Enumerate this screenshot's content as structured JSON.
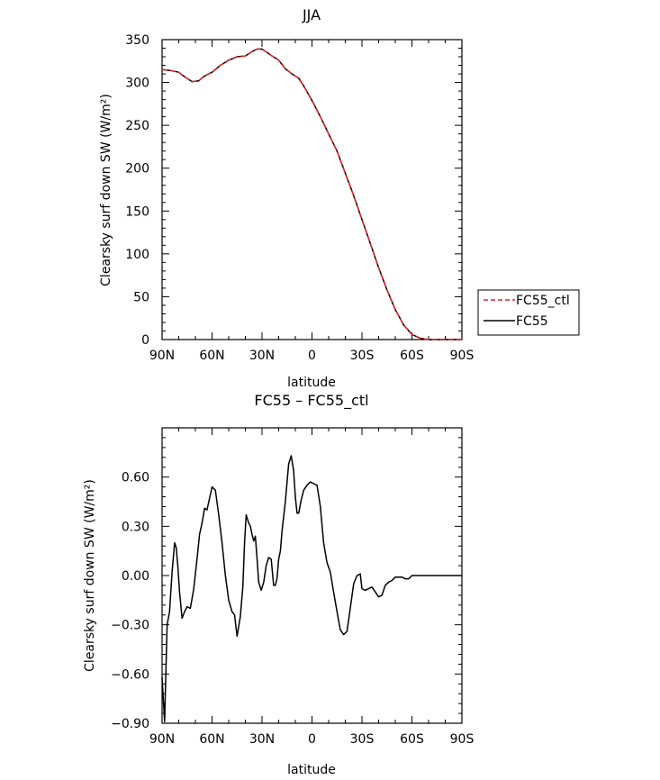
{
  "chart_data": [
    {
      "type": "line",
      "title": "JJA",
      "xlabel": "latitude",
      "ylabel": "Clearsky surf down SW (W/m²)",
      "x_ticks": [
        {
          "value": 90,
          "label": "90N"
        },
        {
          "value": 60,
          "label": "60N"
        },
        {
          "value": 30,
          "label": "30N"
        },
        {
          "value": 0,
          "label": "0"
        },
        {
          "value": -30,
          "label": "30S"
        },
        {
          "value": -60,
          "label": "60S"
        },
        {
          "value": -90,
          "label": "90S"
        }
      ],
      "xlim": [
        90,
        -90
      ],
      "ylim": [
        0,
        350
      ],
      "y_ticks": [
        {
          "value": 0,
          "label": "0"
        },
        {
          "value": 50,
          "label": "50"
        },
        {
          "value": 100,
          "label": "100"
        },
        {
          "value": 150,
          "label": "150"
        },
        {
          "value": 200,
          "label": "200"
        },
        {
          "value": 250,
          "label": "250"
        },
        {
          "value": 300,
          "label": "300"
        },
        {
          "value": 350,
          "label": "350"
        }
      ],
      "legend": {
        "placement": "right",
        "entries": [
          {
            "name": "FC55_ctl",
            "color": "#e8202a",
            "dash": "dashed"
          },
          {
            "name": "FC55",
            "color": "#000000",
            "dash": "solid"
          }
        ]
      },
      "series": [
        {
          "name": "FC55_ctl",
          "color": "#e8202a",
          "x": [
            90,
            85,
            80,
            76,
            72,
            68,
            65,
            60,
            55,
            50,
            45,
            40,
            36,
            33,
            30,
            27,
            24,
            20,
            16,
            12,
            8,
            5,
            0,
            -5,
            -10,
            -15,
            -20,
            -25,
            -30,
            -35,
            -40,
            -45,
            -50,
            -55,
            -60,
            -65,
            -70,
            -75,
            -80,
            -85,
            -90
          ],
          "y": [
            315,
            314,
            312,
            306,
            301,
            302,
            307,
            312,
            320,
            326,
            330,
            331,
            336,
            339,
            339,
            335,
            331,
            326,
            316,
            310,
            305,
            296,
            279,
            260,
            240,
            220,
            194,
            168,
            140,
            112,
            84,
            58,
            35,
            17,
            6,
            1.5,
            0,
            0,
            0,
            0,
            0
          ]
        },
        {
          "name": "FC55",
          "color": "#000000",
          "x": [
            90,
            85,
            80,
            76,
            72,
            68,
            65,
            60,
            55,
            50,
            45,
            40,
            36,
            33,
            30,
            27,
            24,
            20,
            16,
            12,
            8,
            5,
            0,
            -5,
            -10,
            -15,
            -20,
            -25,
            -30,
            -35,
            -40,
            -45,
            -50,
            -55,
            -60,
            -65,
            -70,
            -75,
            -80,
            -85,
            -90
          ],
          "y": [
            315,
            314,
            312,
            306,
            301,
            302,
            307,
            312,
            320,
            326,
            330,
            331,
            336,
            339,
            339,
            335,
            331,
            326,
            316,
            310,
            305,
            296,
            279,
            260,
            240,
            220,
            194,
            168,
            140,
            112,
            84,
            58,
            35,
            17,
            6,
            1.5,
            0,
            0,
            0,
            0,
            0
          ]
        }
      ]
    },
    {
      "type": "line",
      "title": "FC55 – FC55_ctl",
      "xlabel": "latitude",
      "ylabel": "Clearsky surf down SW (W/m²)",
      "x_ticks": [
        {
          "value": 90,
          "label": "90N"
        },
        {
          "value": 60,
          "label": "60N"
        },
        {
          "value": 30,
          "label": "30N"
        },
        {
          "value": 0,
          "label": "0"
        },
        {
          "value": -30,
          "label": "30S"
        },
        {
          "value": -60,
          "label": "60S"
        },
        {
          "value": -90,
          "label": "90S"
        }
      ],
      "xlim": [
        90,
        -90
      ],
      "ylim": [
        -0.9,
        0.9
      ],
      "y_ticks": [
        {
          "value": -0.9,
          "label": "−0.90"
        },
        {
          "value": -0.6,
          "label": "−0.60"
        },
        {
          "value": -0.3,
          "label": "−0.30"
        },
        {
          "value": 0,
          "label": "0.00"
        },
        {
          "value": 0.3,
          "label": "0.30"
        },
        {
          "value": 0.6,
          "label": "0.60"
        }
      ],
      "series": [
        {
          "name": "FC55",
          "color": "#000000",
          "x": [
            90,
            88.5,
            87,
            85.5,
            84,
            82.5,
            81.5,
            80.5,
            79.5,
            78,
            76.5,
            75,
            73,
            71,
            69,
            67.5,
            66,
            64.5,
            63,
            61.5,
            60,
            58,
            56,
            54,
            52,
            50,
            48,
            46.5,
            45,
            43,
            41.5,
            40.5,
            39.5,
            38,
            37,
            36,
            35,
            34,
            33,
            32,
            30.5,
            29,
            27.5,
            26,
            24.5,
            23,
            22,
            21,
            20,
            19,
            18,
            16,
            14,
            12.5,
            11,
            10,
            9,
            8,
            6.5,
            5,
            3,
            1,
            -1,
            -3,
            -5,
            -7,
            -9,
            -11,
            -13,
            -15,
            -17,
            -19,
            -21,
            -23,
            -25,
            -27,
            -29,
            -30,
            -32,
            -34,
            -36,
            -38,
            -40,
            -42,
            -44,
            -46,
            -48,
            -50,
            -52,
            -54,
            -56,
            -58,
            -60,
            -63,
            -66,
            -70,
            -74,
            -78,
            -82,
            -86,
            -90
          ],
          "y": [
            -0.62,
            -0.89,
            -0.3,
            -0.22,
            0.02,
            0.2,
            0.17,
            0.05,
            -0.1,
            -0.26,
            -0.22,
            -0.19,
            -0.2,
            -0.08,
            0.1,
            0.25,
            0.32,
            0.41,
            0.4,
            0.47,
            0.54,
            0.52,
            0.37,
            0.2,
            0.0,
            -0.15,
            -0.22,
            -0.24,
            -0.37,
            -0.25,
            -0.07,
            0.2,
            0.37,
            0.32,
            0.3,
            0.25,
            0.21,
            0.24,
            0.11,
            -0.04,
            -0.09,
            -0.04,
            0.06,
            0.11,
            0.1,
            -0.06,
            -0.06,
            -0.02,
            0.1,
            0.15,
            0.27,
            0.45,
            0.68,
            0.73,
            0.64,
            0.48,
            0.38,
            0.38,
            0.46,
            0.52,
            0.55,
            0.57,
            0.56,
            0.55,
            0.42,
            0.2,
            0.08,
            0.02,
            -0.1,
            -0.22,
            -0.33,
            -0.36,
            -0.34,
            -0.2,
            -0.05,
            0.0,
            0.01,
            -0.08,
            -0.09,
            -0.08,
            -0.07,
            -0.1,
            -0.13,
            -0.12,
            -0.06,
            -0.04,
            -0.03,
            -0.01,
            -0.01,
            -0.01,
            -0.02,
            -0.02,
            0.0,
            0.0,
            0.0,
            0.0,
            0.0,
            0.0,
            0.0,
            0.0,
            0.0
          ]
        }
      ]
    }
  ]
}
